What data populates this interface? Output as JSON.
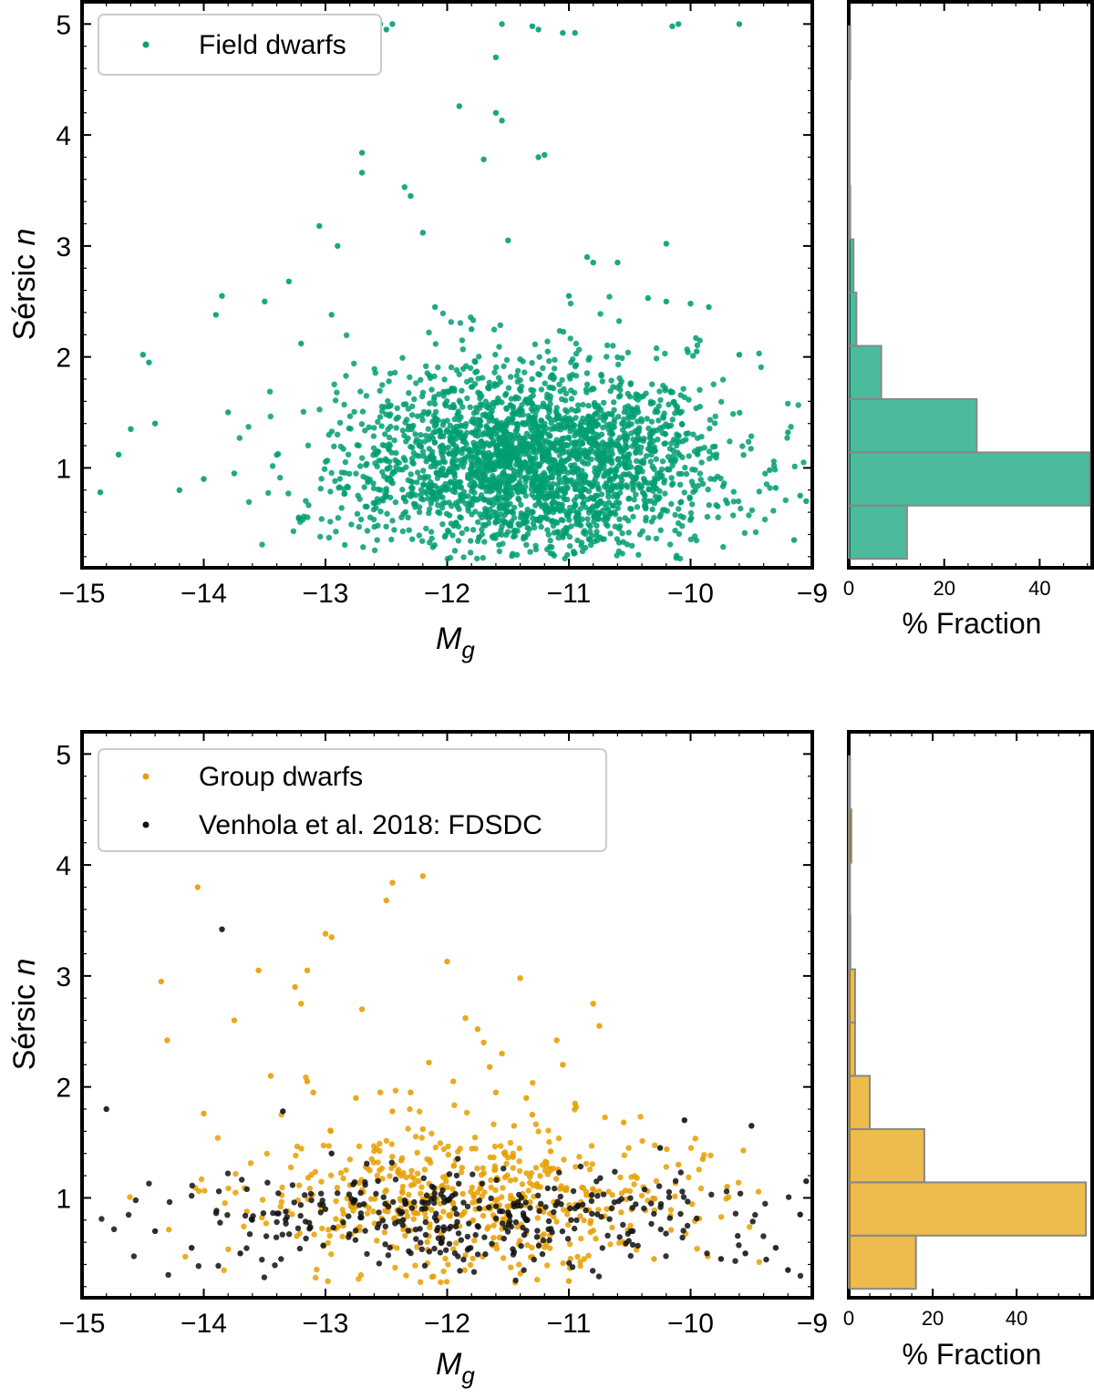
{
  "figure": {
    "colors": {
      "field": "#009e73",
      "group": "#e69f00",
      "fdsdc": "#111111",
      "hist_edge": "#888888"
    }
  },
  "chart_data": [
    {
      "id": "top-scatter",
      "type": "scatter",
      "xlabel": "M",
      "xlabel_sub": "g",
      "ylabel": "Sérsic",
      "ylabel_var": "n",
      "xlim": [
        -15,
        -9
      ],
      "ylim": [
        0.1,
        5.2
      ],
      "xticks": [
        -15,
        -14,
        -13,
        -12,
        -11,
        -10,
        -9
      ],
      "xtick_labels": [
        "−15",
        "−14",
        "−13",
        "−12",
        "−11",
        "−10",
        "−9"
      ],
      "yticks": [
        1,
        2,
        3,
        4,
        5
      ],
      "ytick_labels": [
        "1",
        "2",
        "3",
        "4",
        "5"
      ],
      "legend": "top-left",
      "series": [
        {
          "name": "Field dwarfs",
          "color": "#009e73",
          "distribution": {
            "x_mean": -11.3,
            "x_sd": 0.75,
            "y_mean": 1.05,
            "y_sd": 0.38,
            "n": 2600
          },
          "x": [
            -14.5,
            -14.45,
            -13.9,
            -13.85,
            -13.8,
            -13.5,
            -13.3,
            -13.2,
            -13.05,
            -12.95,
            -12.9,
            -12.7,
            -12.7,
            -12.35,
            -12.3,
            -12.2,
            -12.1,
            -11.9,
            -11.8,
            -11.7,
            -11.6,
            -11.55,
            -11.5,
            -11.25,
            -11.2,
            -11.0,
            -10.85,
            -10.8,
            -10.6,
            -10.35,
            -10.2,
            -10.2,
            -10.0,
            -9.95,
            -9.85,
            -9.6,
            -9.2,
            -9.15,
            -13.6,
            -13.25,
            -12.65,
            -12.55,
            -12.5,
            -12.45,
            -11.6,
            -11.55,
            -11.3,
            -11.25,
            -11.05,
            -10.95,
            -10.15,
            -10.1,
            -9.6,
            -14.2,
            -14.0,
            -13.75,
            -14.7,
            -14.6,
            -14.85,
            -14.4,
            -9.35,
            -9.3,
            -9.1,
            -9.05
          ],
          "y": [
            2.02,
            1.95,
            2.38,
            2.55,
            1.5,
            2.5,
            2.68,
            2.12,
            3.18,
            2.38,
            3.0,
            3.84,
            3.66,
            3.53,
            3.45,
            3.12,
            2.45,
            4.26,
            2.25,
            3.78,
            4.2,
            4.13,
            3.05,
            3.8,
            3.82,
            2.55,
            2.9,
            2.85,
            2.85,
            2.53,
            3.02,
            2.5,
            2.48,
            2.05,
            2.45,
            2.02,
            1.32,
            0.35,
            5.0,
            5.0,
            5.0,
            5.0,
            4.95,
            5.0,
            4.7,
            5.0,
            4.98,
            4.95,
            4.92,
            4.92,
            4.98,
            5.0,
            5.0,
            0.8,
            0.9,
            0.95,
            1.12,
            1.35,
            0.78,
            1.4,
            0.98,
            0.82,
            0.75,
            0.7
          ]
        }
      ]
    },
    {
      "id": "top-hist",
      "type": "bar",
      "orientation": "horizontal",
      "xlabel": "% Fraction",
      "xlim": [
        0,
        51
      ],
      "ylim": [
        0.1,
        5.2
      ],
      "xticks": [
        0,
        20,
        40
      ],
      "xtick_labels": [
        "0",
        "20",
        "40"
      ],
      "bin_edges": [
        0.18,
        0.66,
        1.14,
        1.62,
        2.1,
        2.58,
        3.06,
        3.54,
        4.02,
        4.5,
        4.98
      ],
      "values": [
        12.2,
        50.5,
        26.8,
        6.8,
        1.6,
        1.0,
        0.3,
        0.2,
        0.2,
        0.3
      ],
      "color": "#009e73"
    },
    {
      "id": "bottom-scatter",
      "type": "scatter",
      "xlabel": "M",
      "xlabel_sub": "g",
      "ylabel": "Sérsic",
      "ylabel_var": "n",
      "xlim": [
        -15,
        -9
      ],
      "ylim": [
        0.1,
        5.2
      ],
      "xticks": [
        -15,
        -14,
        -13,
        -12,
        -11,
        -10,
        -9
      ],
      "xtick_labels": [
        "−15",
        "−14",
        "−13",
        "−12",
        "−11",
        "−10",
        "−9"
      ],
      "yticks": [
        1,
        2,
        3,
        4,
        5
      ],
      "ytick_labels": [
        "1",
        "2",
        "3",
        "4",
        "5"
      ],
      "legend": "top-left",
      "series": [
        {
          "name": "Group dwarfs",
          "color": "#e69f00",
          "distribution": {
            "x_mean": -11.8,
            "x_sd": 0.9,
            "y_mean": 0.98,
            "y_sd": 0.3,
            "n": 560
          },
          "x": [
            -14.05,
            -14.35,
            -14.3,
            -13.75,
            -13.55,
            -13.45,
            -13.25,
            -13.2,
            -13.15,
            -13.15,
            -13.0,
            -12.95,
            -12.7,
            -12.5,
            -12.45,
            -12.2,
            -12.0,
            -11.85,
            -11.75,
            -11.7,
            -11.65,
            -11.55,
            -11.4,
            -11.1,
            -11.05,
            -10.8,
            -10.75,
            -12.55,
            -12.45,
            -12.3,
            -12.15,
            -11.95,
            -11.6,
            -11.35,
            -12.75,
            -13.1,
            -14.0,
            -10.95,
            -12.2,
            -11.3,
            -11.15,
            -10.55,
            -10.1,
            -9.7,
            -9.9,
            -11.45,
            -11.0,
            -10.3
          ],
          "y": [
            3.8,
            2.95,
            2.42,
            2.6,
            3.05,
            2.1,
            2.9,
            2.75,
            3.05,
            2.05,
            3.38,
            3.35,
            2.7,
            3.68,
            3.84,
            3.9,
            3.13,
            2.62,
            2.52,
            2.4,
            2.18,
            2.3,
            2.98,
            2.42,
            2.2,
            2.75,
            2.55,
            1.95,
            1.78,
            1.95,
            2.22,
            2.05,
            1.95,
            1.9,
            1.9,
            1.95,
            1.76,
            1.85,
            1.62,
            1.75,
            1.42,
            1.68,
            1.3,
            1.1,
            1.35,
            1.65,
            0.25,
            0.45
          ]
        },
        {
          "name": "Venhola et al. 2018: FDSDC",
          "color": "#111111",
          "distribution": {
            "x_mean": -11.9,
            "x_sd": 1.2,
            "y_mean": 0.82,
            "y_sd": 0.2,
            "n": 360
          },
          "x": [
            -13.85,
            -14.8,
            -13.35,
            -12.95,
            -9.5,
            -9.05,
            -10.05,
            -10.25,
            -9.2,
            -9.1,
            -9.3,
            -9.55,
            -9.75,
            -13.7,
            -14.1,
            -14.4
          ],
          "y": [
            3.42,
            1.8,
            1.78,
            1.4,
            1.65,
            1.15,
            1.7,
            1.45,
            0.35,
            0.85,
            0.55,
            0.5,
            0.45,
            0.5,
            0.55,
            0.7
          ]
        }
      ]
    },
    {
      "id": "bottom-hist",
      "type": "bar",
      "orientation": "horizontal",
      "xlabel": "% Fraction",
      "xlim": [
        0,
        58
      ],
      "ylim": [
        0.1,
        5.2
      ],
      "xticks": [
        0,
        20,
        40
      ],
      "xtick_labels": [
        "0",
        "20",
        "40"
      ],
      "bin_edges": [
        0.18,
        0.66,
        1.14,
        1.62,
        2.1,
        2.58,
        3.06,
        3.54,
        4.02,
        4.5,
        4.98
      ],
      "values": [
        16.0,
        56.5,
        18.0,
        5.0,
        1.5,
        1.5,
        0.4,
        0.3,
        0.6,
        0.3
      ],
      "color": "#e69f00"
    }
  ]
}
